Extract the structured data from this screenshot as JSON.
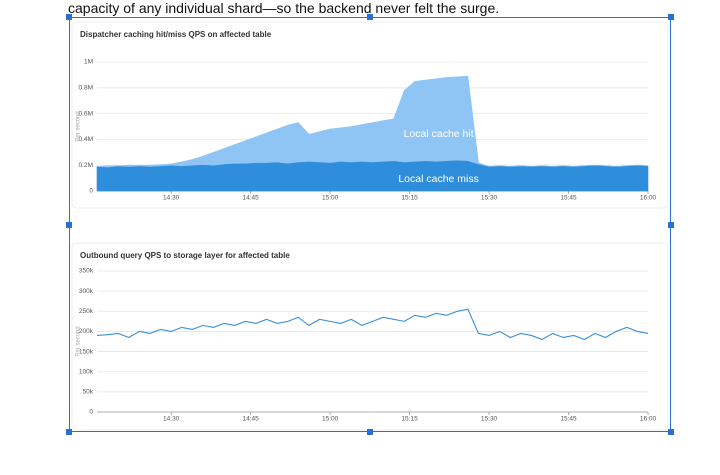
{
  "document_text": "capacity of any individual shard—so the backend never felt the surge.",
  "chart_data": [
    {
      "type": "area",
      "stacked": true,
      "title": "Dispatcher caching hit/miss QPS on affected table",
      "ylabel": "Per second",
      "x": [
        "14:16",
        "14:18",
        "14:20",
        "14:22",
        "14:24",
        "14:26",
        "14:28",
        "14:30",
        "14:32",
        "14:34",
        "14:36",
        "14:38",
        "14:40",
        "14:42",
        "14:44",
        "14:46",
        "14:48",
        "14:50",
        "14:52",
        "14:54",
        "14:56",
        "14:58",
        "15:00",
        "15:02",
        "15:04",
        "15:06",
        "15:08",
        "15:10",
        "15:12",
        "15:14",
        "15:16",
        "15:18",
        "15:20",
        "15:22",
        "15:24",
        "15:26",
        "15:28",
        "15:30",
        "15:32",
        "15:34",
        "15:36",
        "15:38",
        "15:40",
        "15:42",
        "15:44",
        "15:46",
        "15:48",
        "15:50",
        "15:52",
        "15:54",
        "15:56",
        "15:58",
        "16:00"
      ],
      "xlim": [
        "14:16",
        "16:00"
      ],
      "xticks": [
        "14:30",
        "14:45",
        "15:00",
        "15:15",
        "15:30",
        "15:45",
        "16:00"
      ],
      "ylim": [
        0,
        1000000
      ],
      "yticks": [
        0,
        {
          "value": 200000,
          "label": "0.2M"
        },
        {
          "value": 400000,
          "label": "0.4M"
        },
        {
          "value": 600000,
          "label": "0.6M"
        },
        {
          "value": 800000,
          "label": "0.8M"
        },
        {
          "value": 1000000,
          "label": "1M"
        }
      ],
      "grid": true,
      "series": [
        {
          "name": "Local cache miss",
          "color": "#2f8edc",
          "values": [
            190000,
            185000,
            195000,
            190000,
            195000,
            190000,
            195000,
            200000,
            195000,
            200000,
            205000,
            200000,
            210000,
            215000,
            215000,
            220000,
            220000,
            225000,
            215000,
            225000,
            230000,
            225000,
            220000,
            230000,
            225000,
            230000,
            225000,
            230000,
            235000,
            225000,
            230000,
            235000,
            230000,
            235000,
            240000,
            235000,
            210000,
            190000,
            195000,
            190000,
            195000,
            190000,
            195000,
            190000,
            195000,
            190000,
            195000,
            200000,
            195000,
            190000,
            195000,
            200000,
            195000
          ]
        },
        {
          "name": "Local cache hit",
          "color": "#8fc5f4",
          "values": [
            0,
            10000,
            0,
            10000,
            5000,
            10000,
            10000,
            10000,
            30000,
            45000,
            65000,
            100000,
            120000,
            145000,
            175000,
            200000,
            230000,
            255000,
            295000,
            305000,
            210000,
            235000,
            260000,
            260000,
            275000,
            285000,
            305000,
            315000,
            325000,
            555000,
            620000,
            625000,
            640000,
            645000,
            645000,
            655000,
            10000,
            0,
            0,
            0,
            0,
            0,
            0,
            0,
            0,
            0,
            0,
            0,
            0,
            0,
            0,
            0,
            0
          ]
        }
      ]
    },
    {
      "type": "line",
      "title": "Outbound query QPS to storage layer for affected table",
      "ylabel": "Per second",
      "x": [
        "14:16",
        "14:18",
        "14:20",
        "14:22",
        "14:24",
        "14:26",
        "14:28",
        "14:30",
        "14:32",
        "14:34",
        "14:36",
        "14:38",
        "14:40",
        "14:42",
        "14:44",
        "14:46",
        "14:48",
        "14:50",
        "14:52",
        "14:54",
        "14:56",
        "14:58",
        "15:00",
        "15:02",
        "15:04",
        "15:06",
        "15:08",
        "15:10",
        "15:12",
        "15:14",
        "15:16",
        "15:18",
        "15:20",
        "15:22",
        "15:24",
        "15:26",
        "15:28",
        "15:30",
        "15:32",
        "15:34",
        "15:36",
        "15:38",
        "15:40",
        "15:42",
        "15:44",
        "15:46",
        "15:48",
        "15:50",
        "15:52",
        "15:54",
        "15:56",
        "15:58",
        "16:00"
      ],
      "xlim": [
        "14:16",
        "16:00"
      ],
      "xticks": [
        "14:30",
        "14:45",
        "15:00",
        "15:15",
        "15:30",
        "15:45",
        "16:00"
      ],
      "ylim": [
        0,
        350000
      ],
      "yticks": [
        0,
        {
          "value": 50000,
          "label": "50k"
        },
        {
          "value": 100000,
          "label": "100k"
        },
        {
          "value": 150000,
          "label": "150k"
        },
        {
          "value": 200000,
          "label": "200k"
        },
        {
          "value": 250000,
          "label": "250k"
        },
        {
          "value": 300000,
          "label": "300k"
        },
        {
          "value": 350000,
          "label": "350k"
        }
      ],
      "grid": true,
      "series": [
        {
          "name": "Outbound query QPS",
          "color": "#3a8fd6",
          "values": [
            190000,
            192000,
            195000,
            185000,
            200000,
            195000,
            205000,
            200000,
            210000,
            205000,
            215000,
            210000,
            220000,
            215000,
            225000,
            220000,
            230000,
            220000,
            225000,
            235000,
            215000,
            230000,
            225000,
            220000,
            230000,
            215000,
            225000,
            235000,
            230000,
            225000,
            240000,
            235000,
            245000,
            240000,
            250000,
            255000,
            195000,
            190000,
            200000,
            185000,
            195000,
            190000,
            180000,
            195000,
            185000,
            190000,
            180000,
            195000,
            185000,
            200000,
            210000,
            200000,
            195000
          ]
        }
      ]
    }
  ]
}
